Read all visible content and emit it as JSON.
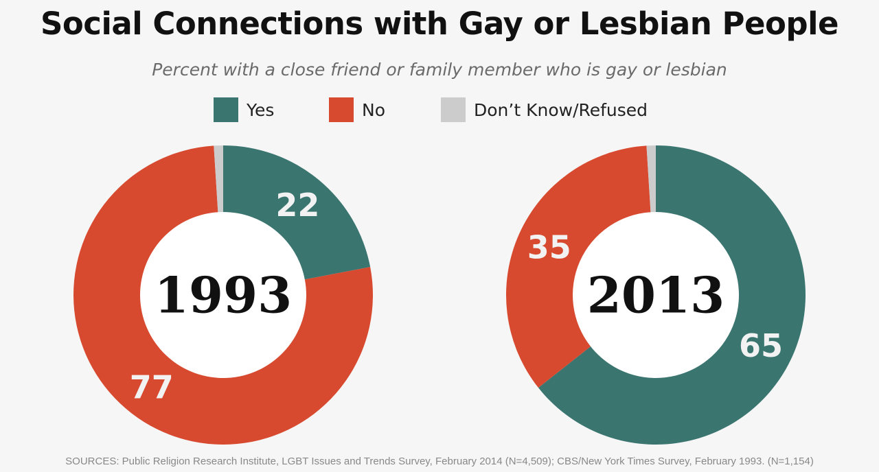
{
  "title": "Social Connections with Gay or Lesbian People",
  "subtitle": "Percent with a close friend or family member who is gay or lesbian",
  "legend": [
    {
      "label": "Yes",
      "color": "#3a7570"
    },
    {
      "label": "No",
      "color": "#d84a2f"
    },
    {
      "label": "Don’t Know/Refused",
      "color": "#cccccc"
    }
  ],
  "chart_data": [
    {
      "type": "pie",
      "style": "donut",
      "center_label": "1993",
      "slices": [
        {
          "category": "Yes",
          "value": 22,
          "label": "22",
          "color": "#3a7570"
        },
        {
          "category": "No",
          "value": 77,
          "label": "77",
          "color": "#d84a2f"
        },
        {
          "category": "Don’t Know/Refused",
          "value": 1,
          "label": "",
          "color": "#cccccc"
        }
      ]
    },
    {
      "type": "pie",
      "style": "donut",
      "center_label": "2013",
      "slices": [
        {
          "category": "Yes",
          "value": 65,
          "label": "65",
          "color": "#3a7570"
        },
        {
          "category": "No",
          "value": 35,
          "label": "35",
          "color": "#d84a2f"
        },
        {
          "category": "Don’t Know/Refused",
          "value": 1,
          "label": "",
          "color": "#cccccc"
        }
      ]
    }
  ],
  "source": "SOURCES: Public Religion Research Institute, LGBT Issues and Trends Survey, February 2014 (N=4,509); CBS/New York Times Survey, February 1993. (N=1,154)"
}
